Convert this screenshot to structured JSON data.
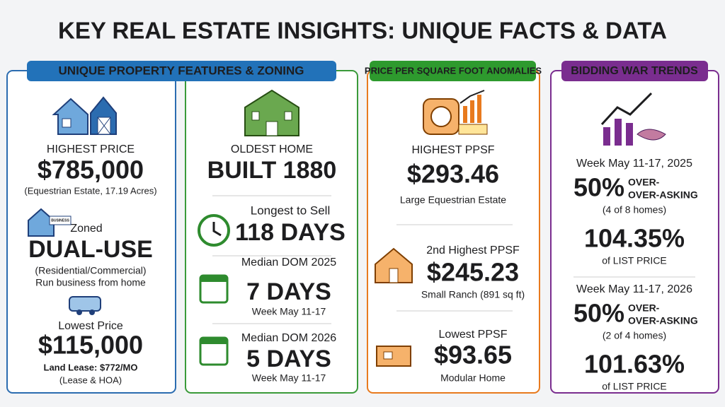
{
  "title": "KEY REAL ESTATE INSIGHTS: UNIQUE FACTS & DATA",
  "features": {
    "header": "UNIQUE PROPERTY FEATURES & ZONING",
    "highest_price": {
      "label": "HIGHEST PRICE",
      "value": "$785,000",
      "note": "(Equestrian Estate, 17.19 Acres)"
    },
    "zoned": {
      "sign": "BUSINESS",
      "label": "Zoned",
      "value": "DUAL-USE",
      "note1": "(Residential/Commercial)",
      "note2": "Run business from home"
    },
    "lowest_price": {
      "label": "Lowest Price",
      "value": "$115,000",
      "note1": "Land Lease: $772/MO",
      "note2": "(Lease & HOA)"
    },
    "oldest": {
      "label": "OLDEST HOME",
      "value": "BUILT 1880"
    },
    "longest": {
      "label": "Longest to Sell",
      "value": "118 DAYS"
    },
    "dom_2025": {
      "label": "Median DOM 2025",
      "value": "7 DAYS",
      "note": "Week May 11-17"
    },
    "dom_2026": {
      "label": "Median DOM 2026",
      "value": "5 DAYS",
      "note": "Week May 11-17"
    }
  },
  "ppsf": {
    "header": "PRICE PER SQUARE FOOT ANOMALIES",
    "highest": {
      "label": "HIGHEST PPSF",
      "value": "$293.46",
      "note": "Large Equestrian Estate"
    },
    "second": {
      "label": "2nd Highest PPSF",
      "value": "$245.23",
      "note": "Small Ranch (891 sq ft)"
    },
    "lowest": {
      "label": "Lowest PPSF",
      "value": "$93.65",
      "note": "Modular Home"
    }
  },
  "bidding": {
    "header": "BIDDING WAR TRENDS",
    "weeks": [
      {
        "week": "Week May 11-17, 2025",
        "percent": "50%",
        "over": "OVER-",
        "asking": "OVER-ASKING",
        "count": "(4 of 8 homes)",
        "ratio": "104.35%",
        "ratio_label": "of LIST PRICE"
      },
      {
        "week": "Week May 11-17, 2026",
        "percent": "50%",
        "over": "OVER-",
        "asking": "OVER-ASKING",
        "count": "(2 of 4 homes)",
        "ratio": "101.63%",
        "ratio_label": "of LIST PRICE"
      }
    ]
  }
}
